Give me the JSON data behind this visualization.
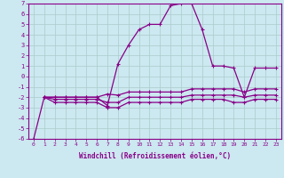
{
  "title": "",
  "xlabel": "Windchill (Refroidissement éolien,°C)",
  "ylabel": "",
  "background_color": "#cce8f0",
  "grid_color": "#aacccc",
  "line_color": "#880088",
  "xlim": [
    -0.5,
    23.5
  ],
  "ylim": [
    -6,
    7
  ],
  "xtick_labels": [
    "0",
    "1",
    "2",
    "3",
    "4",
    "5",
    "6",
    "7",
    "8",
    "9",
    "10",
    "11",
    "12",
    "13",
    "14",
    "15",
    "16",
    "17",
    "18",
    "19",
    "20",
    "21",
    "22",
    "23"
  ],
  "ytick_labels": [
    "-6",
    "-5",
    "-4",
    "-3",
    "-2",
    "-1",
    "0",
    "1",
    "2",
    "3",
    "4",
    "5",
    "6",
    "7"
  ],
  "series": [
    {
      "x": [
        0,
        1,
        2,
        3,
        4,
        5,
        6,
        7,
        8,
        9,
        10,
        11,
        12,
        13,
        14,
        15,
        16,
        17,
        18,
        19,
        20,
        21,
        22,
        23
      ],
      "y": [
        -6,
        -2,
        -2,
        -2,
        -2,
        -2,
        -2,
        -2.8,
        1.2,
        3.0,
        4.5,
        5.0,
        5.0,
        6.8,
        7.0,
        7.0,
        4.5,
        1.0,
        1.0,
        0.8,
        -2.0,
        0.8,
        0.8,
        0.8
      ]
    },
    {
      "x": [
        1,
        2,
        3,
        4,
        5,
        6,
        7,
        8,
        9,
        10,
        11,
        12,
        13,
        14,
        15,
        16,
        17,
        18,
        19,
        20,
        21,
        22,
        23
      ],
      "y": [
        -2,
        -2,
        -2,
        -2,
        -2,
        -2,
        -1.7,
        -1.8,
        -1.5,
        -1.5,
        -1.5,
        -1.5,
        -1.5,
        -1.5,
        -1.2,
        -1.2,
        -1.2,
        -1.2,
        -1.2,
        -1.5,
        -1.2,
        -1.2,
        -1.2
      ]
    },
    {
      "x": [
        1,
        2,
        3,
        4,
        5,
        6,
        7,
        8,
        9,
        10,
        11,
        12,
        13,
        14,
        15,
        16,
        17,
        18,
        19,
        20,
        21,
        22,
        23
      ],
      "y": [
        -2,
        -2.2,
        -2.2,
        -2.2,
        -2.2,
        -2.2,
        -2.5,
        -2.5,
        -2.0,
        -2.0,
        -2.0,
        -2.0,
        -2.0,
        -2.0,
        -1.8,
        -1.8,
        -1.8,
        -1.8,
        -1.8,
        -2.0,
        -1.8,
        -1.8,
        -1.8
      ]
    },
    {
      "x": [
        1,
        2,
        3,
        4,
        5,
        6,
        7,
        8,
        9,
        10,
        11,
        12,
        13,
        14,
        15,
        16,
        17,
        18,
        19,
        20,
        21,
        22,
        23
      ],
      "y": [
        -2,
        -2.5,
        -2.5,
        -2.5,
        -2.5,
        -2.5,
        -3.0,
        -3.0,
        -2.5,
        -2.5,
        -2.5,
        -2.5,
        -2.5,
        -2.5,
        -2.2,
        -2.2,
        -2.2,
        -2.2,
        -2.5,
        -2.5,
        -2.2,
        -2.2,
        -2.2
      ]
    }
  ]
}
